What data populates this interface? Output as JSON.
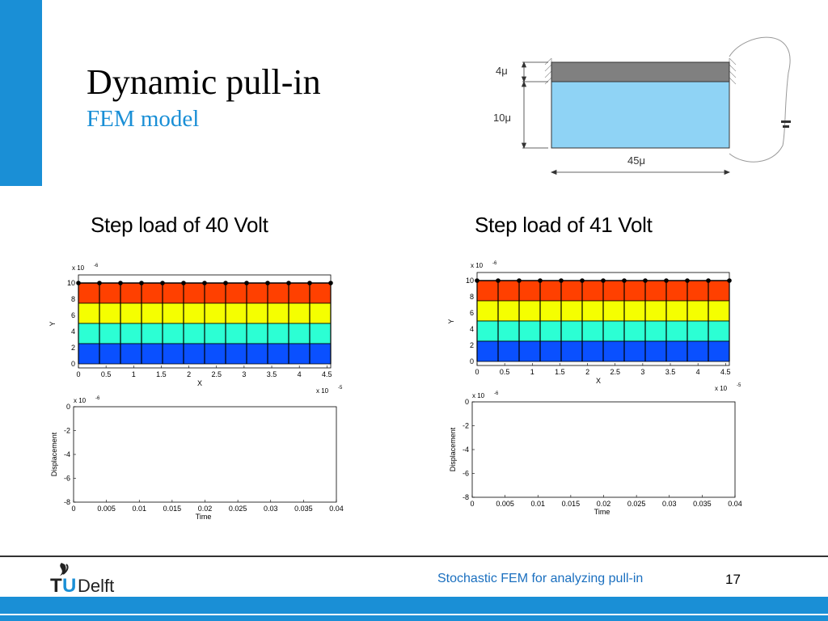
{
  "slide": {
    "title": "Dynamic pull-in",
    "subtitle": "FEM model"
  },
  "diagram": {
    "dim_top": "4μ",
    "dim_side": "10μ",
    "dim_bottom": "45μ",
    "colors": {
      "beam": "#808080",
      "gap": "#8fd3f5"
    }
  },
  "panels": [
    {
      "caption": "Step load of 40 Volt",
      "mesh": {
        "x_ticks": [
          "0",
          "0.5",
          "1",
          "1.5",
          "2",
          "2.5",
          "3",
          "3.5",
          "4",
          "4.5"
        ],
        "y_ticks": [
          "10",
          "8",
          "6",
          "4",
          "2",
          "0"
        ],
        "x_label": "X",
        "y_label": "Y",
        "x_scale": "x 10",
        "x_exp": "-5",
        "y_scale": "x 10",
        "y_exp": "-6"
      },
      "disp": {
        "x_ticks": [
          "0",
          "0.005",
          "0.01",
          "0.015",
          "0.02",
          "0.025",
          "0.03",
          "0.035",
          "0.04"
        ],
        "y_ticks": [
          "0",
          "-2",
          "-4",
          "-6",
          "-8"
        ],
        "x_label": "Time",
        "y_label": "Displacement",
        "y_scale": "x 10",
        "y_exp": "-6"
      }
    },
    {
      "caption": "Step load of 41 Volt",
      "mesh": {
        "x_ticks": [
          "0",
          "0.5",
          "1",
          "1.5",
          "2",
          "2.5",
          "3",
          "3.5",
          "4",
          "4.5"
        ],
        "y_ticks": [
          "10",
          "8",
          "6",
          "4",
          "2",
          "0"
        ],
        "x_label": "X",
        "y_label": "Y",
        "x_scale": "x 10",
        "x_exp": "-5",
        "y_scale": "x 10",
        "y_exp": "-6"
      },
      "disp": {
        "x_ticks": [
          "0",
          "0.005",
          "0.01",
          "0.015",
          "0.02",
          "0.025",
          "0.03",
          "0.035",
          "0.04"
        ],
        "y_ticks": [
          "0",
          "-2",
          "-4",
          "-6",
          "-8"
        ],
        "x_label": "Time",
        "y_label": "Displacement",
        "y_scale": "x 10",
        "y_exp": "-6"
      }
    }
  ],
  "mesh_colors": {
    "layer_top": "#ff4000",
    "layer_2": "#f5ff00",
    "layer_3": "#2cffd4",
    "layer_bottom": "#0a50ff"
  },
  "footer": {
    "logo_t": "T",
    "logo_u": "U",
    "logo_delft": "Delft",
    "text": "Stochastic FEM for analyzing pull-in",
    "page": "17"
  },
  "colors": {
    "accent": "#1a8fd6"
  }
}
